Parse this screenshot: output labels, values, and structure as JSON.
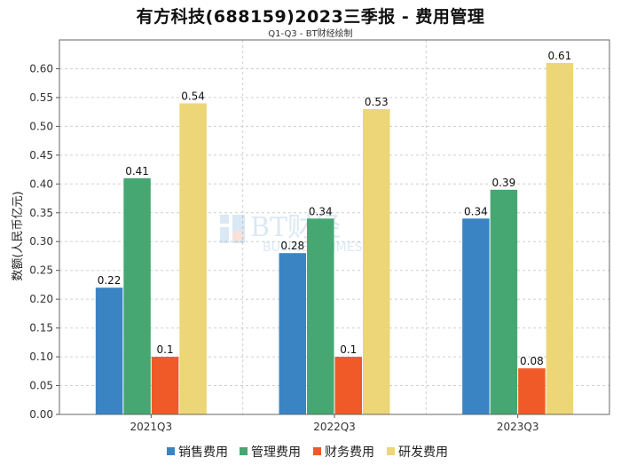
{
  "header": {
    "title": "有方科技(688159)2023三季报 - 费用管理",
    "subtitle": "Q1-Q3 - BT财经绘制"
  },
  "watermark": {
    "main": "BT财经",
    "sub": "BUSINESSTIMES"
  },
  "chart_data": {
    "type": "bar",
    "title": "有方科技(688159)2023三季报 - 费用管理",
    "subtitle": "Q1-Q3 - BT财经绘制",
    "xlabel": "",
    "ylabel": "数额(人民币亿元)",
    "ylim": [
      0,
      0.65
    ],
    "yticks": [
      "0.00",
      "0.05",
      "0.10",
      "0.15",
      "0.20",
      "0.25",
      "0.30",
      "0.35",
      "0.40",
      "0.45",
      "0.50",
      "0.55",
      "0.60"
    ],
    "categories": [
      "2021Q3",
      "2022Q3",
      "2023Q3"
    ],
    "series": [
      {
        "name": "销售费用",
        "color": "#3a84c4",
        "values": [
          0.22,
          0.28,
          0.34
        ],
        "labels": [
          "0.22",
          "0.28",
          "0.34"
        ]
      },
      {
        "name": "管理费用",
        "color": "#46a773",
        "values": [
          0.41,
          0.34,
          0.39
        ],
        "labels": [
          "0.41",
          "0.34",
          "0.39"
        ]
      },
      {
        "name": "财务费用",
        "color": "#f05a28",
        "values": [
          0.1,
          0.1,
          0.08
        ],
        "labels": [
          "0.1",
          "0.1",
          "0.08"
        ]
      },
      {
        "name": "研发费用",
        "color": "#edd677",
        "values": [
          0.54,
          0.53,
          0.61
        ],
        "labels": [
          "0.54",
          "0.53",
          "0.61"
        ]
      }
    ],
    "grid": true,
    "legend": "bottom-center"
  }
}
